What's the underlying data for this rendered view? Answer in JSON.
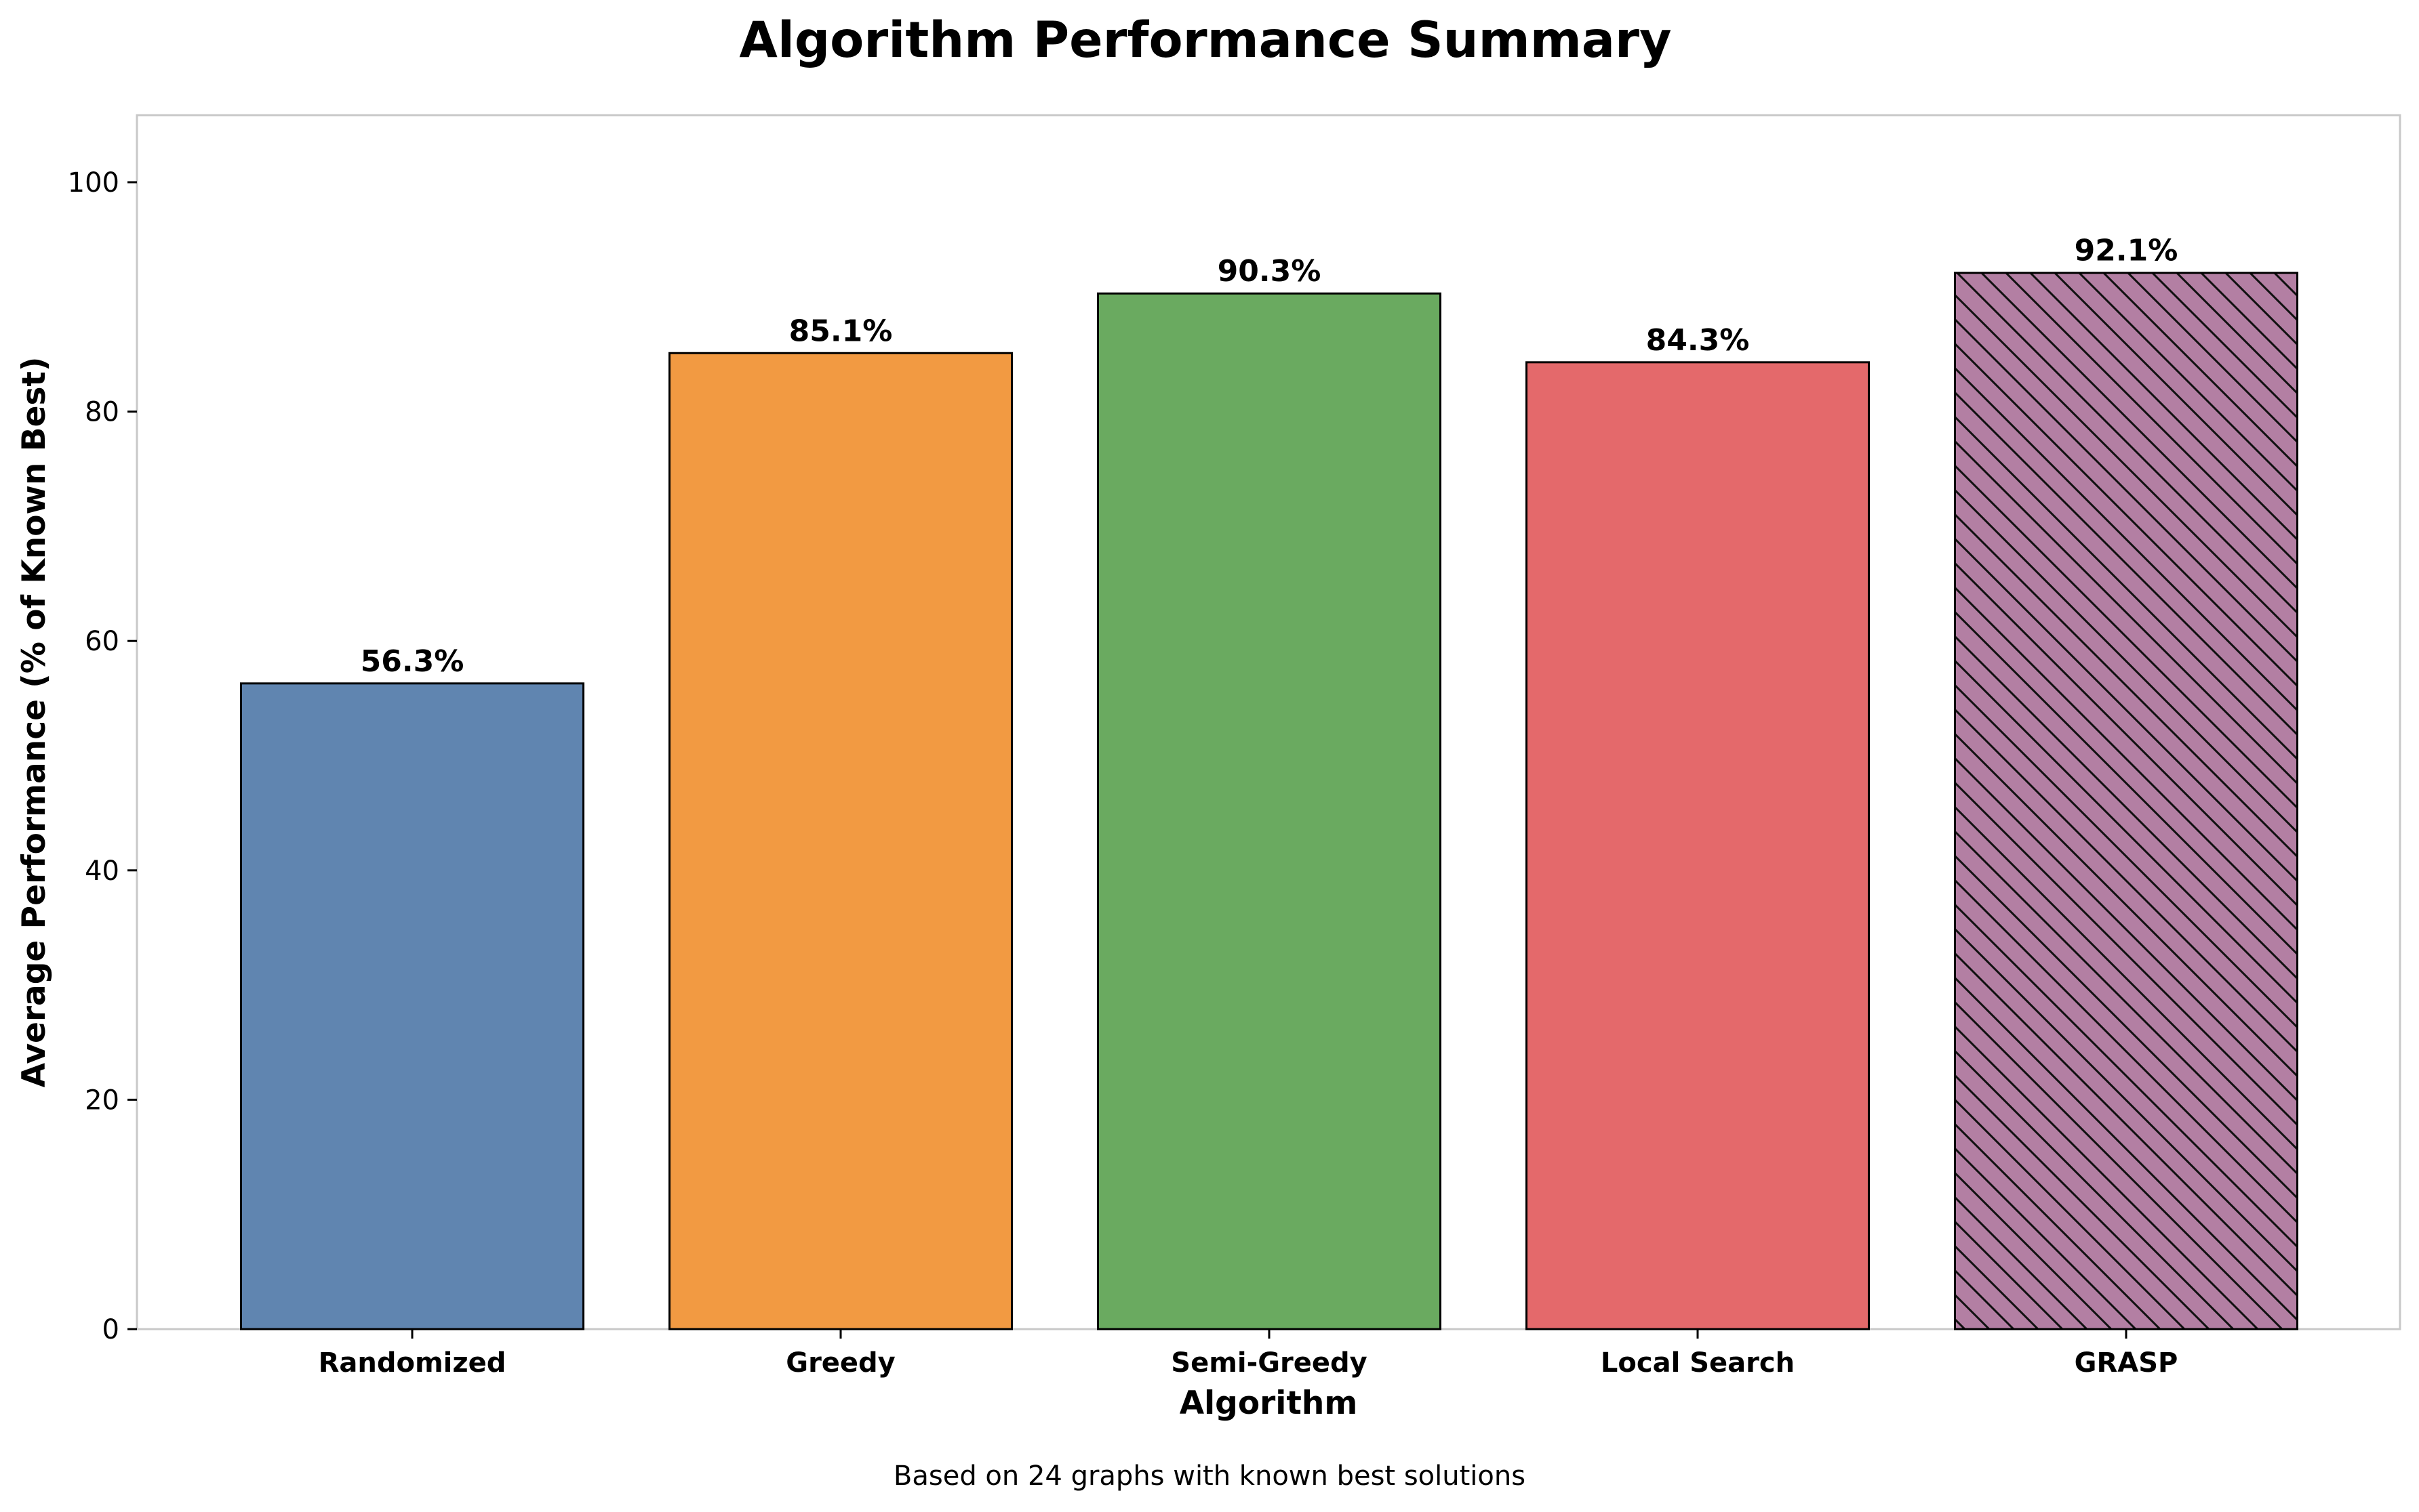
{
  "chart_data": {
    "type": "bar",
    "title": "Algorithm Performance Summary",
    "xlabel": "Algorithm",
    "ylabel": "Average Performance (% of Known Best)",
    "footnote": "Based on 24 graphs with known best solutions",
    "categories": [
      "Randomized",
      "Greedy",
      "Semi-Greedy",
      "Local Search",
      "GRASP"
    ],
    "values": [
      56.3,
      85.1,
      90.3,
      84.3,
      92.1
    ],
    "data_labels": [
      "56.3%",
      "85.1%",
      "90.3%",
      "84.3%",
      "92.1%"
    ],
    "colors": [
      "#6085b0",
      "#f29a42",
      "#6aaa60",
      "#e4696b",
      "#b37fa3"
    ],
    "hatched": [
      false,
      false,
      false,
      false,
      true
    ],
    "ylim": [
      0,
      106
    ],
    "yticks": [
      0,
      20,
      40,
      60,
      80,
      100
    ],
    "grid": false,
    "legend": "none"
  }
}
